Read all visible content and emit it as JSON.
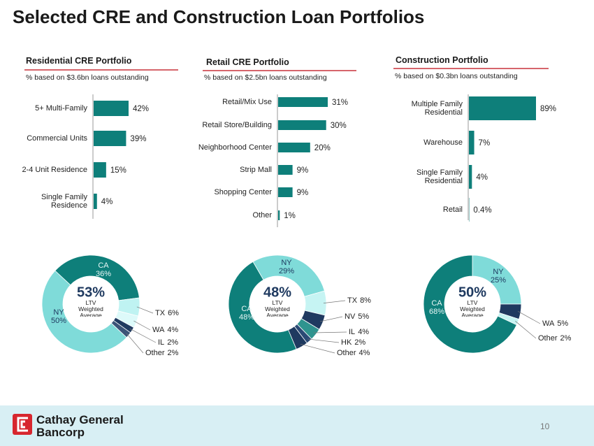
{
  "title": "Selected CRE and Construction Loan Portfolios",
  "chart_data": [
    {
      "type": "bar",
      "title": "Residential CRE Portfolio",
      "subtitle": "% based on $3.6bn loans outstanding",
      "categories": [
        "5+ Multi-Family",
        "Commercial Units",
        "2-4 Unit Residence",
        "Single Family Residence"
      ],
      "values": [
        42,
        39,
        15,
        4
      ],
      "value_labels": [
        "42%",
        "39%",
        "15%",
        "4%"
      ],
      "color": "#0e7f7a"
    },
    {
      "type": "bar",
      "title": "Retail CRE Portfolio",
      "subtitle": "% based on $2.5bn loans outstanding",
      "categories": [
        "Retail/Mix Use",
        "Retail Store/Building",
        "Neighborhood Center",
        "Strip Mall",
        "Shopping Center",
        "Other"
      ],
      "values": [
        31,
        30,
        20,
        9,
        9,
        1
      ],
      "value_labels": [
        "31%",
        "30%",
        "20%",
        "9%",
        "9%",
        "1%"
      ],
      "color": "#0e7f7a"
    },
    {
      "type": "bar",
      "title": "Construction Portfolio",
      "subtitle": "% based on $0.3bn loans outstanding",
      "categories": [
        "Multiple Family Residential",
        "Warehouse",
        "Single Family Residential",
        "Retail"
      ],
      "values": [
        89,
        7,
        4,
        0.4
      ],
      "value_labels": [
        "89%",
        "7%",
        "4%",
        "0.4%"
      ],
      "color": "#0e7f7a"
    },
    {
      "type": "donut",
      "center_label": "53%",
      "center_caption": "LTV Weighted Average",
      "categories": [
        "CA",
        "TX",
        "WA",
        "IL",
        "Other",
        "NY"
      ],
      "values": [
        36,
        6,
        4,
        2,
        2,
        50
      ],
      "value_labels": [
        "36%",
        "6%",
        "4%",
        "2%",
        "2%",
        "50%"
      ],
      "colors": [
        "#0e7f7a",
        "#bff3f2",
        "#ddfafa",
        "#1f3a60",
        "#3b5478",
        "#7fdbd9"
      ]
    },
    {
      "type": "donut",
      "center_label": "48%",
      "center_caption": "LTV Weighted Average",
      "categories": [
        "NY",
        "TX",
        "NV",
        "IL",
        "HK",
        "Other",
        "CA"
      ],
      "values": [
        29,
        8,
        5,
        4,
        2,
        4,
        48
      ],
      "value_labels": [
        "29%",
        "8%",
        "5%",
        "4%",
        "2%",
        "4%",
        "48%"
      ],
      "colors": [
        "#7fdbd9",
        "#c6f4f3",
        "#1f3a60",
        "#2f948f",
        "#2b4a75",
        "#1f3a60",
        "#0e7f7a"
      ]
    },
    {
      "type": "donut",
      "center_label": "50%",
      "center_caption": "LTV Weighted Average",
      "categories": [
        "NY",
        "WA",
        "Other",
        "CA"
      ],
      "values": [
        25,
        5,
        2,
        68
      ],
      "value_labels": [
        "25%",
        "5%",
        "2%",
        "68%"
      ],
      "colors": [
        "#7fdbd9",
        "#1f3a60",
        "#c6f4f3",
        "#0e7f7a"
      ]
    }
  ],
  "footer": {
    "company_line1": "Cathay General",
    "company_line2": "Bancorp",
    "page": "10"
  }
}
